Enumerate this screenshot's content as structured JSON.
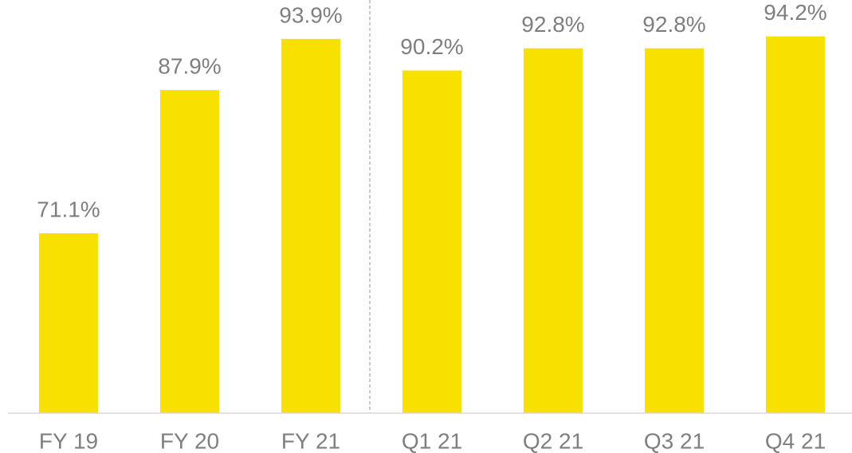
{
  "chart_data": {
    "type": "bar",
    "categories": [
      "FY 19",
      "FY 20",
      "FY 21",
      "Q1 21",
      "Q2 21",
      "Q3 21",
      "Q4 21"
    ],
    "values": [
      71.1,
      87.9,
      93.9,
      90.2,
      92.8,
      92.8,
      94.2
    ],
    "value_labels": [
      "71.1%",
      "87.9%",
      "93.9%",
      "90.2%",
      "92.8%",
      "92.8%",
      "94.2%"
    ],
    "color": "#f8e000",
    "ylim": [
      50,
      98
    ]
  }
}
